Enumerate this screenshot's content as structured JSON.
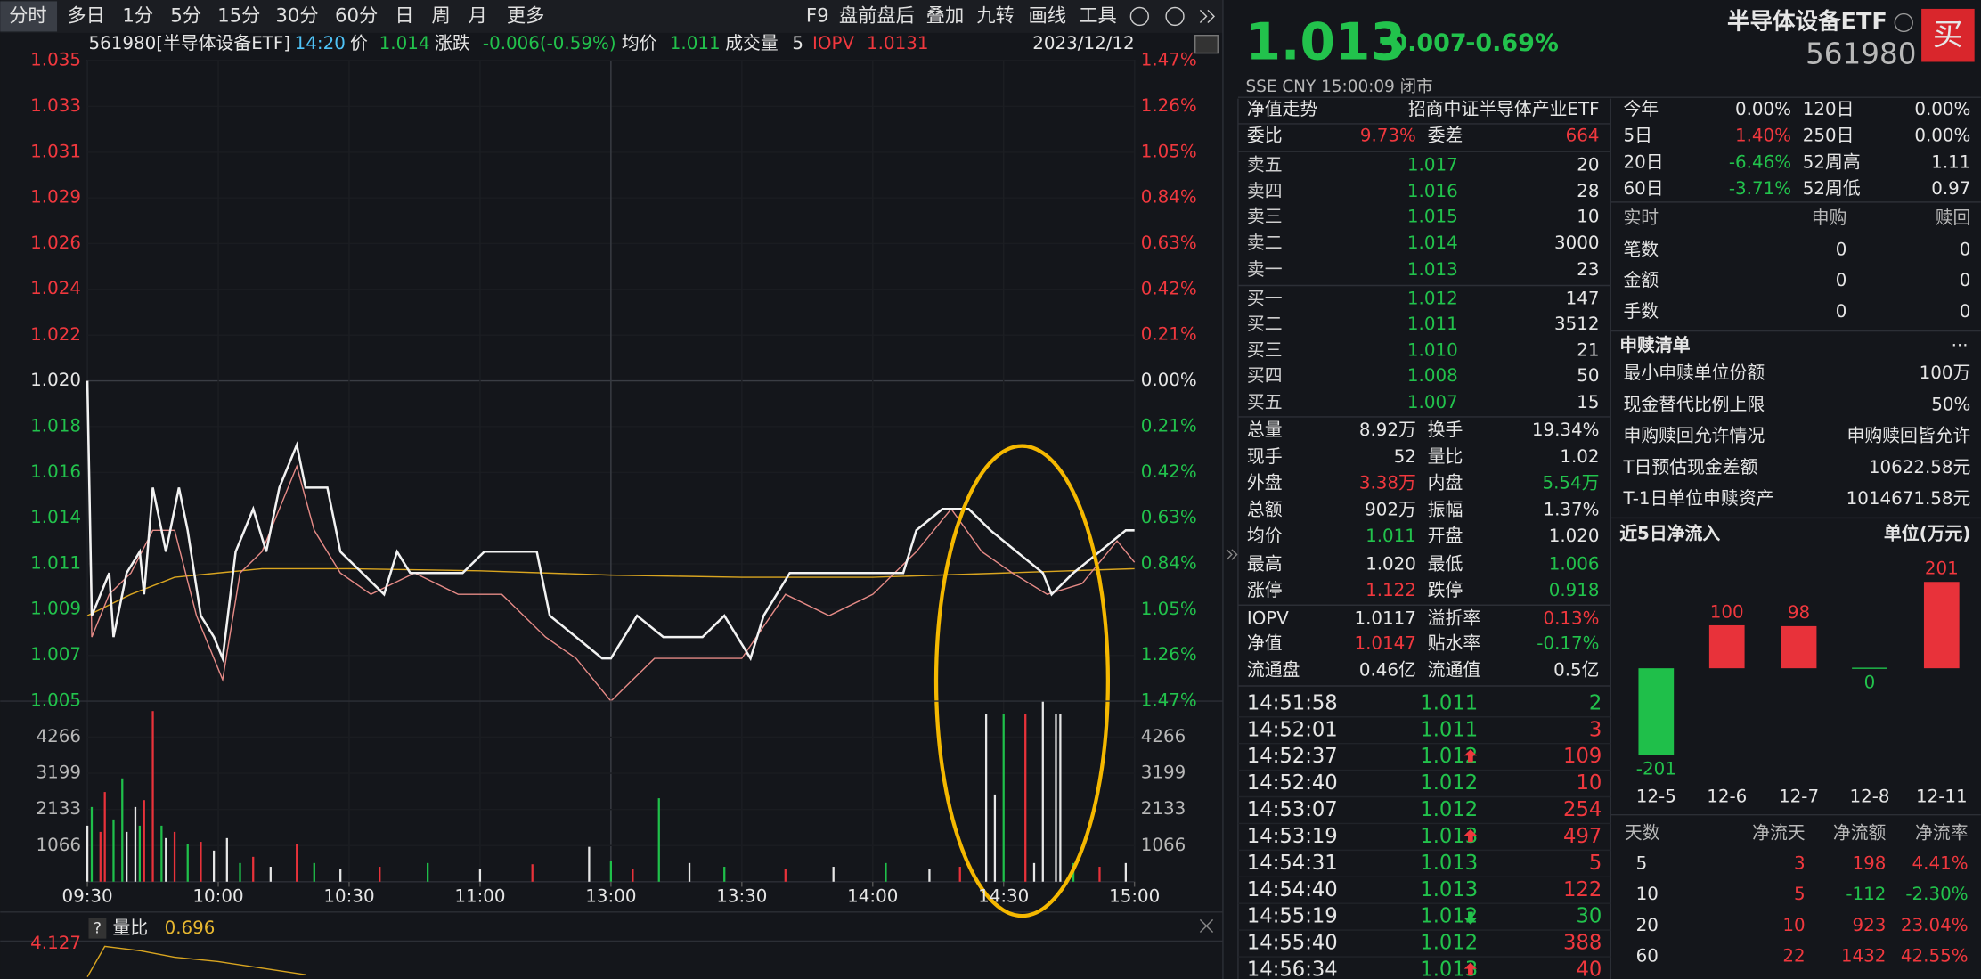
{
  "toolbar": {
    "tabs": [
      "分时",
      "多日",
      "1分",
      "5分",
      "15分",
      "30分",
      "60分",
      "日",
      "周",
      "月",
      "更多"
    ],
    "tools": [
      "F9",
      "盘前盘后",
      "叠加",
      "九转",
      "画线",
      "工具"
    ]
  },
  "chart_data": [
    {
      "type": "line",
      "header": {
        "security": "561980[半导体设备ETF]",
        "time": "14:20",
        "price_label": "价",
        "price": "1.014",
        "change_label": "涨跌",
        "change": "-0.006(-0.59%)",
        "avg_label": "均价",
        "avg": "1.011",
        "volume_label": "成交量",
        "volume": "5",
        "iopv_label": "IOPV",
        "iopv": "1.0131",
        "date": "2023/12/12"
      },
      "xlim": [
        0,
        240
      ],
      "xticks": [
        {
          "value": 0,
          "label": "09:30"
        },
        {
          "value": 30,
          "label": "10:00"
        },
        {
          "value": 60,
          "label": "10:30"
        },
        {
          "value": 90,
          "label": "11:00"
        },
        {
          "value": 120,
          "label": "13:00"
        },
        {
          "value": 150,
          "label": "13:30"
        },
        {
          "value": 180,
          "label": "14:00"
        },
        {
          "value": 210,
          "label": "14:30"
        },
        {
          "value": 240,
          "label": "15:00"
        }
      ],
      "ylim": [
        1.005,
        1.035
      ],
      "yticks": [
        {
          "value": 1.035,
          "label": "1.035"
        },
        {
          "value": 1.03286,
          "label": "1.033"
        },
        {
          "value": 1.03071,
          "label": "1.031"
        },
        {
          "value": 1.02857,
          "label": "1.029"
        },
        {
          "value": 1.02643,
          "label": "1.026"
        },
        {
          "value": 1.02429,
          "label": "1.024"
        },
        {
          "value": 1.02214,
          "label": "1.022"
        },
        {
          "value": 1.02,
          "label": "1.020"
        },
        {
          "value": 1.01786,
          "label": "1.018"
        },
        {
          "value": 1.01571,
          "label": "1.016"
        },
        {
          "value": 1.01357,
          "label": "1.014"
        },
        {
          "value": 1.01143,
          "label": "1.011"
        },
        {
          "value": 1.00929,
          "label": "1.009"
        },
        {
          "value": 1.00714,
          "label": "1.007"
        },
        {
          "value": 1.005,
          "label": "1.005"
        }
      ],
      "y2lim": [
        -1.47,
        1.47
      ],
      "y2ticks": [
        {
          "value": 1.47,
          "label": "1.47%"
        },
        {
          "value": 1.26,
          "label": "1.26%"
        },
        {
          "value": 1.05,
          "label": "1.05%"
        },
        {
          "value": 0.84,
          "label": "0.84%"
        },
        {
          "value": 0.63,
          "label": "0.63%"
        },
        {
          "value": 0.42,
          "label": "0.42%"
        },
        {
          "value": 0.21,
          "label": "0.21%"
        },
        {
          "value": 0,
          "label": "0.00%"
        },
        {
          "value": -0.21,
          "label": "0.21%"
        },
        {
          "value": -0.42,
          "label": "0.42%"
        },
        {
          "value": -0.63,
          "label": "0.63%"
        },
        {
          "value": -0.84,
          "label": "0.84%"
        },
        {
          "value": -1.05,
          "label": "1.05%"
        },
        {
          "value": -1.26,
          "label": "1.26%"
        },
        {
          "value": -1.47,
          "label": "1.47%"
        }
      ],
      "grid": true,
      "price": {
        "color": "#f2f2f2",
        "x": [
          0,
          1,
          5,
          6,
          9,
          12,
          13,
          15,
          18,
          21,
          23,
          26,
          29,
          31,
          34,
          38,
          41,
          44,
          48,
          50,
          52,
          55,
          58,
          63,
          68,
          71,
          74,
          80,
          86,
          91,
          97,
          103,
          106,
          112,
          118,
          120,
          126,
          132,
          141,
          146,
          152,
          155,
          161,
          167,
          173,
          181,
          187,
          190,
          196,
          202,
          207,
          213,
          219,
          221,
          226,
          232,
          238,
          240
        ],
        "values": [
          1.02,
          1.009,
          1.011,
          1.008,
          1.011,
          1.012,
          1.01,
          1.015,
          1.012,
          1.015,
          1.013,
          1.009,
          1.008,
          1.007,
          1.012,
          1.014,
          1.012,
          1.015,
          1.017,
          1.015,
          1.015,
          1.015,
          1.012,
          1.011,
          1.01,
          1.012,
          1.011,
          1.011,
          1.011,
          1.012,
          1.012,
          1.012,
          1.009,
          1.008,
          1.007,
          1.007,
          1.009,
          1.008,
          1.008,
          1.009,
          1.007,
          1.009,
          1.011,
          1.011,
          1.011,
          1.011,
          1.011,
          1.013,
          1.014,
          1.014,
          1.013,
          1.012,
          1.011,
          1.01,
          1.011,
          1.012,
          1.013,
          1.013
        ]
      },
      "iopv_line": {
        "color": "#e58a86",
        "x": [
          0,
          1,
          5,
          10,
          15,
          20,
          25,
          31,
          35,
          40,
          48,
          52,
          58,
          65,
          75,
          85,
          95,
          105,
          112,
          120,
          130,
          140,
          150,
          160,
          170,
          180,
          190,
          198,
          205,
          212,
          220,
          228,
          236,
          240
        ],
        "values": [
          1.02,
          1.008,
          1.01,
          1.011,
          1.013,
          1.013,
          1.009,
          1.006,
          1.011,
          1.012,
          1.016,
          1.013,
          1.011,
          1.01,
          1.011,
          1.01,
          1.01,
          1.008,
          1.007,
          1.005,
          1.007,
          1.007,
          1.007,
          1.01,
          1.009,
          1.01,
          1.012,
          1.014,
          1.012,
          1.011,
          1.01,
          1.0105,
          1.0125,
          1.0115
        ]
      },
      "avg_line": {
        "color": "#d9a520",
        "x": [
          0,
          5,
          10,
          20,
          40,
          60,
          90,
          120,
          150,
          180,
          210,
          240
        ],
        "values": [
          1.009,
          1.0095,
          1.01,
          1.0108,
          1.0112,
          1.0112,
          1.0111,
          1.0109,
          1.0108,
          1.0108,
          1.011,
          1.0112
        ]
      },
      "vlim": [
        0,
        5330
      ],
      "vticks": [
        4266,
        3199,
        2133,
        1066
      ],
      "volume": {
        "x": [
          0,
          1,
          3,
          4,
          6,
          8,
          9,
          11,
          12,
          13,
          15,
          17,
          18,
          20,
          23,
          26,
          29,
          32,
          35,
          38,
          42,
          48,
          52,
          58,
          67,
          78,
          90,
          102,
          115,
          120,
          125,
          131,
          138,
          146,
          160,
          171,
          183,
          193,
          200,
          206,
          208,
          210,
          215,
          217,
          219,
          222,
          223,
          226,
          232,
          238
        ],
        "values": [
          1654,
          2206,
          1470,
          2647,
          1838,
          3050,
          1470,
          2206,
          1654,
          2408,
          5036,
          1654,
          1287,
          1470,
          1103,
          1176,
          919,
          1287,
          551,
          735,
          441,
          1103,
          551,
          368,
          441,
          551,
          368,
          515,
          1029,
          625,
          368,
          2463,
          551,
          441,
          368,
          441,
          551,
          368,
          441,
          4962,
          2573,
          4962,
          4962,
          551,
          5330,
          4962,
          4962,
          551,
          441,
          551
        ],
        "colors": [
          "#e6e6e6",
          "#1fbf4a",
          "#e8323a",
          "#e8323a",
          "#1fbf4a",
          "#1fbf4a",
          "#e6e6e6",
          "#e6e6e6",
          "#1fbf4a",
          "#e8323a",
          "#e8323a",
          "#1fbf4a",
          "#e6e6e6",
          "#e8323a",
          "#1fbf4a",
          "#e8323a",
          "#e6e6e6",
          "#e6e6e6",
          "#1fbf4a",
          "#e8323a",
          "#e6e6e6",
          "#e8323a",
          "#1fbf4a",
          "#e6e6e6",
          "#e8323a",
          "#1fbf4a",
          "#e6e6e6",
          "#e8323a",
          "#e6e6e6",
          "#1fbf4a",
          "#e8323a",
          "#1fbf4a",
          "#e6e6e6",
          "#1fbf4a",
          "#e8323a",
          "#e6e6e6",
          "#1fbf4a",
          "#e6e6e6",
          "#e8323a",
          "#e6e6e6",
          "#e6e6e6",
          "#1fbf4a",
          "#e8323a",
          "#e6e6e6",
          "#e6e6e6",
          "#e6e6e6",
          "#e6e6e6",
          "#1fbf4a",
          "#e8323a",
          "#e6e6e6"
        ]
      },
      "ratio": {
        "help": "?",
        "label": "量比",
        "value": 0.696,
        "ylim": [
          2.5,
          4.127
        ],
        "yticks": [
          4.127
        ],
        "color": "#d9a520",
        "x": [
          0,
          4,
          8,
          12,
          20,
          30,
          40,
          50
        ],
        "values": [
          2.6,
          4.0,
          3.9,
          3.8,
          3.5,
          3.3,
          3.0,
          2.7
        ]
      }
    },
    {
      "type": "bar",
      "title": "近5日净流入",
      "unit": "单位(万元)",
      "categories": [
        "12-5",
        "12-6",
        "12-7",
        "12-8",
        "12-11"
      ],
      "values": [
        -201,
        100,
        98,
        0,
        201
      ],
      "ylim": [
        -250,
        250
      ],
      "colors": {
        "positive": "#e8323a",
        "negative": "#1fbf4a"
      }
    }
  ],
  "quote": {
    "price": "1.013",
    "change": "-0.007",
    "change_pct": "-0.69%",
    "name": "半导体设备ETF",
    "code": "561980",
    "buy_button": "买",
    "status": "SSE  CNY  15:00:09  闭市"
  },
  "order_book": {
    "nav_label": "净值走势",
    "fund_name": "招商中证半导体产业ETF",
    "committee": [
      "委比",
      "9.73%",
      "委差",
      "664"
    ],
    "asks": [
      [
        "卖五",
        "1.017",
        "20"
      ],
      [
        "卖四",
        "1.016",
        "28"
      ],
      [
        "卖三",
        "1.015",
        "10"
      ],
      [
        "卖二",
        "1.014",
        "3000"
      ],
      [
        "卖一",
        "1.013",
        "23"
      ]
    ],
    "bids": [
      [
        "买一",
        "1.012",
        "147"
      ],
      [
        "买二",
        "1.011",
        "3512"
      ],
      [
        "买三",
        "1.010",
        "21"
      ],
      [
        "买四",
        "1.008",
        "50"
      ],
      [
        "买五",
        "1.007",
        "15"
      ]
    ]
  },
  "stats": [
    [
      "总量",
      "8.92万",
      "换手",
      "19.34%"
    ],
    [
      "现手",
      "52",
      "量比",
      "1.02"
    ],
    [
      "外盘",
      "3.38万",
      "内盘",
      "5.54万"
    ],
    [
      "总额",
      "902万",
      "振幅",
      "1.37%"
    ],
    [
      "均价",
      "1.011",
      "开盘",
      "1.020"
    ],
    [
      "最高",
      "1.020",
      "最低",
      "1.006"
    ],
    [
      "涨停",
      "1.122",
      "跌停",
      "0.918"
    ]
  ],
  "valuation": [
    [
      "IOPV",
      "1.0117",
      "溢折率",
      "0.13%"
    ],
    [
      "净值",
      "1.0147",
      "贴水率",
      "-0.17%"
    ],
    [
      "流通盘",
      "0.46亿",
      "流通值",
      "0.5亿"
    ]
  ],
  "trades": [
    {
      "time": "14:51:58",
      "price": "1.011",
      "volume": "2",
      "color": "green",
      "flag": null
    },
    {
      "time": "14:52:01",
      "price": "1.011",
      "volume": "3",
      "color": "red",
      "flag": null
    },
    {
      "time": "14:52:37",
      "price": "1.012",
      "volume": "109",
      "color": "red",
      "flag": "up"
    },
    {
      "time": "14:52:40",
      "price": "1.012",
      "volume": "10",
      "color": "red",
      "flag": null
    },
    {
      "time": "14:53:07",
      "price": "1.012",
      "volume": "254",
      "color": "red",
      "flag": null
    },
    {
      "time": "14:53:19",
      "price": "1.013",
      "volume": "497",
      "color": "red",
      "flag": "up"
    },
    {
      "time": "14:54:31",
      "price": "1.013",
      "volume": "5",
      "color": "red",
      "flag": null
    },
    {
      "time": "14:54:40",
      "price": "1.013",
      "volume": "122",
      "color": "red",
      "flag": null
    },
    {
      "time": "14:55:19",
      "price": "1.012",
      "volume": "30",
      "color": "green",
      "flag": "down"
    },
    {
      "time": "14:55:40",
      "price": "1.012",
      "volume": "388",
      "color": "red",
      "flag": null
    },
    {
      "time": "14:56:34",
      "price": "1.013",
      "volume": "40",
      "color": "red",
      "flag": "up"
    }
  ],
  "performance": [
    [
      "今年",
      "0.00%",
      "120日",
      "0.00%"
    ],
    [
      "5日",
      "1.40%",
      "250日",
      "0.00%"
    ],
    [
      "20日",
      "-6.46%",
      "52周高",
      "1.11"
    ],
    [
      "60日",
      "-3.71%",
      "52周低",
      "0.97"
    ]
  ],
  "realtime": {
    "header": [
      "实时",
      "申购",
      "赎回"
    ],
    "rows": [
      [
        "笔数",
        "0",
        "0"
      ],
      [
        "金额",
        "0",
        "0"
      ],
      [
        "手数",
        "0",
        "0"
      ]
    ]
  },
  "creation_list": {
    "title": "申赎清单",
    "more": "···",
    "rows": [
      [
        "最小申赎单位份额",
        "100万"
      ],
      [
        "现金替代比例上限",
        "50%"
      ],
      [
        "申购赎回允许情况",
        "申购赎回皆允许"
      ],
      [
        "T日预估现金差额",
        "10622.58元"
      ],
      [
        "T-1日单位申赎资产",
        "1014671.58元"
      ]
    ]
  },
  "net_flow_table": {
    "header": [
      "天数",
      "净流天",
      "净流额",
      "净流率"
    ],
    "rows": [
      [
        "5",
        "3",
        "198",
        "4.41%"
      ],
      [
        "10",
        "5",
        "-112",
        "-2.30%"
      ],
      [
        "20",
        "10",
        "923",
        "23.04%"
      ],
      [
        "60",
        "22",
        "1432",
        "42.55%"
      ]
    ]
  }
}
